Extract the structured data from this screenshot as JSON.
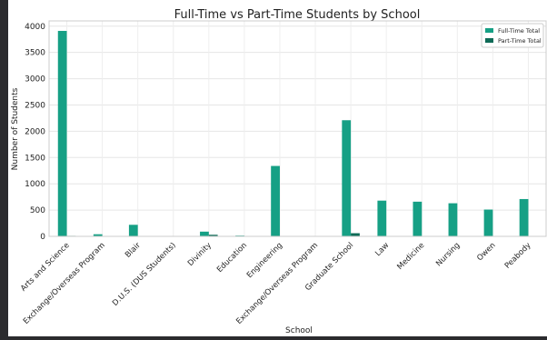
{
  "chart_data": {
    "type": "bar",
    "title": "Full-Time vs Part-Time Students by School",
    "xlabel": "School",
    "ylabel": "Number of Students",
    "ylim": [
      0,
      4100
    ],
    "yticks": [
      0,
      500,
      1000,
      1500,
      2000,
      2500,
      3000,
      3500,
      4000
    ],
    "grid": true,
    "legend_position": "top-right",
    "categories": [
      "Arts and Science",
      "Exchange/Overseas Program",
      "Blair",
      "D.U.S. (DUS Students)",
      "Divinity",
      "Education",
      "Engineering",
      "Exchange/Overseas Program",
      "Graduate School",
      "Law",
      "Medicine",
      "Nursing",
      "Owen",
      "Peabody"
    ],
    "series": [
      {
        "name": "Full-Time Total",
        "color": "#16a085",
        "values": [
          3910,
          40,
          220,
          0,
          90,
          15,
          1340,
          0,
          2210,
          680,
          660,
          630,
          510,
          710
        ]
      },
      {
        "name": "Part-Time Total",
        "color": "#0f6b57",
        "values": [
          10,
          0,
          0,
          0,
          30,
          0,
          0,
          0,
          60,
          0,
          0,
          0,
          0,
          0
        ]
      }
    ]
  }
}
